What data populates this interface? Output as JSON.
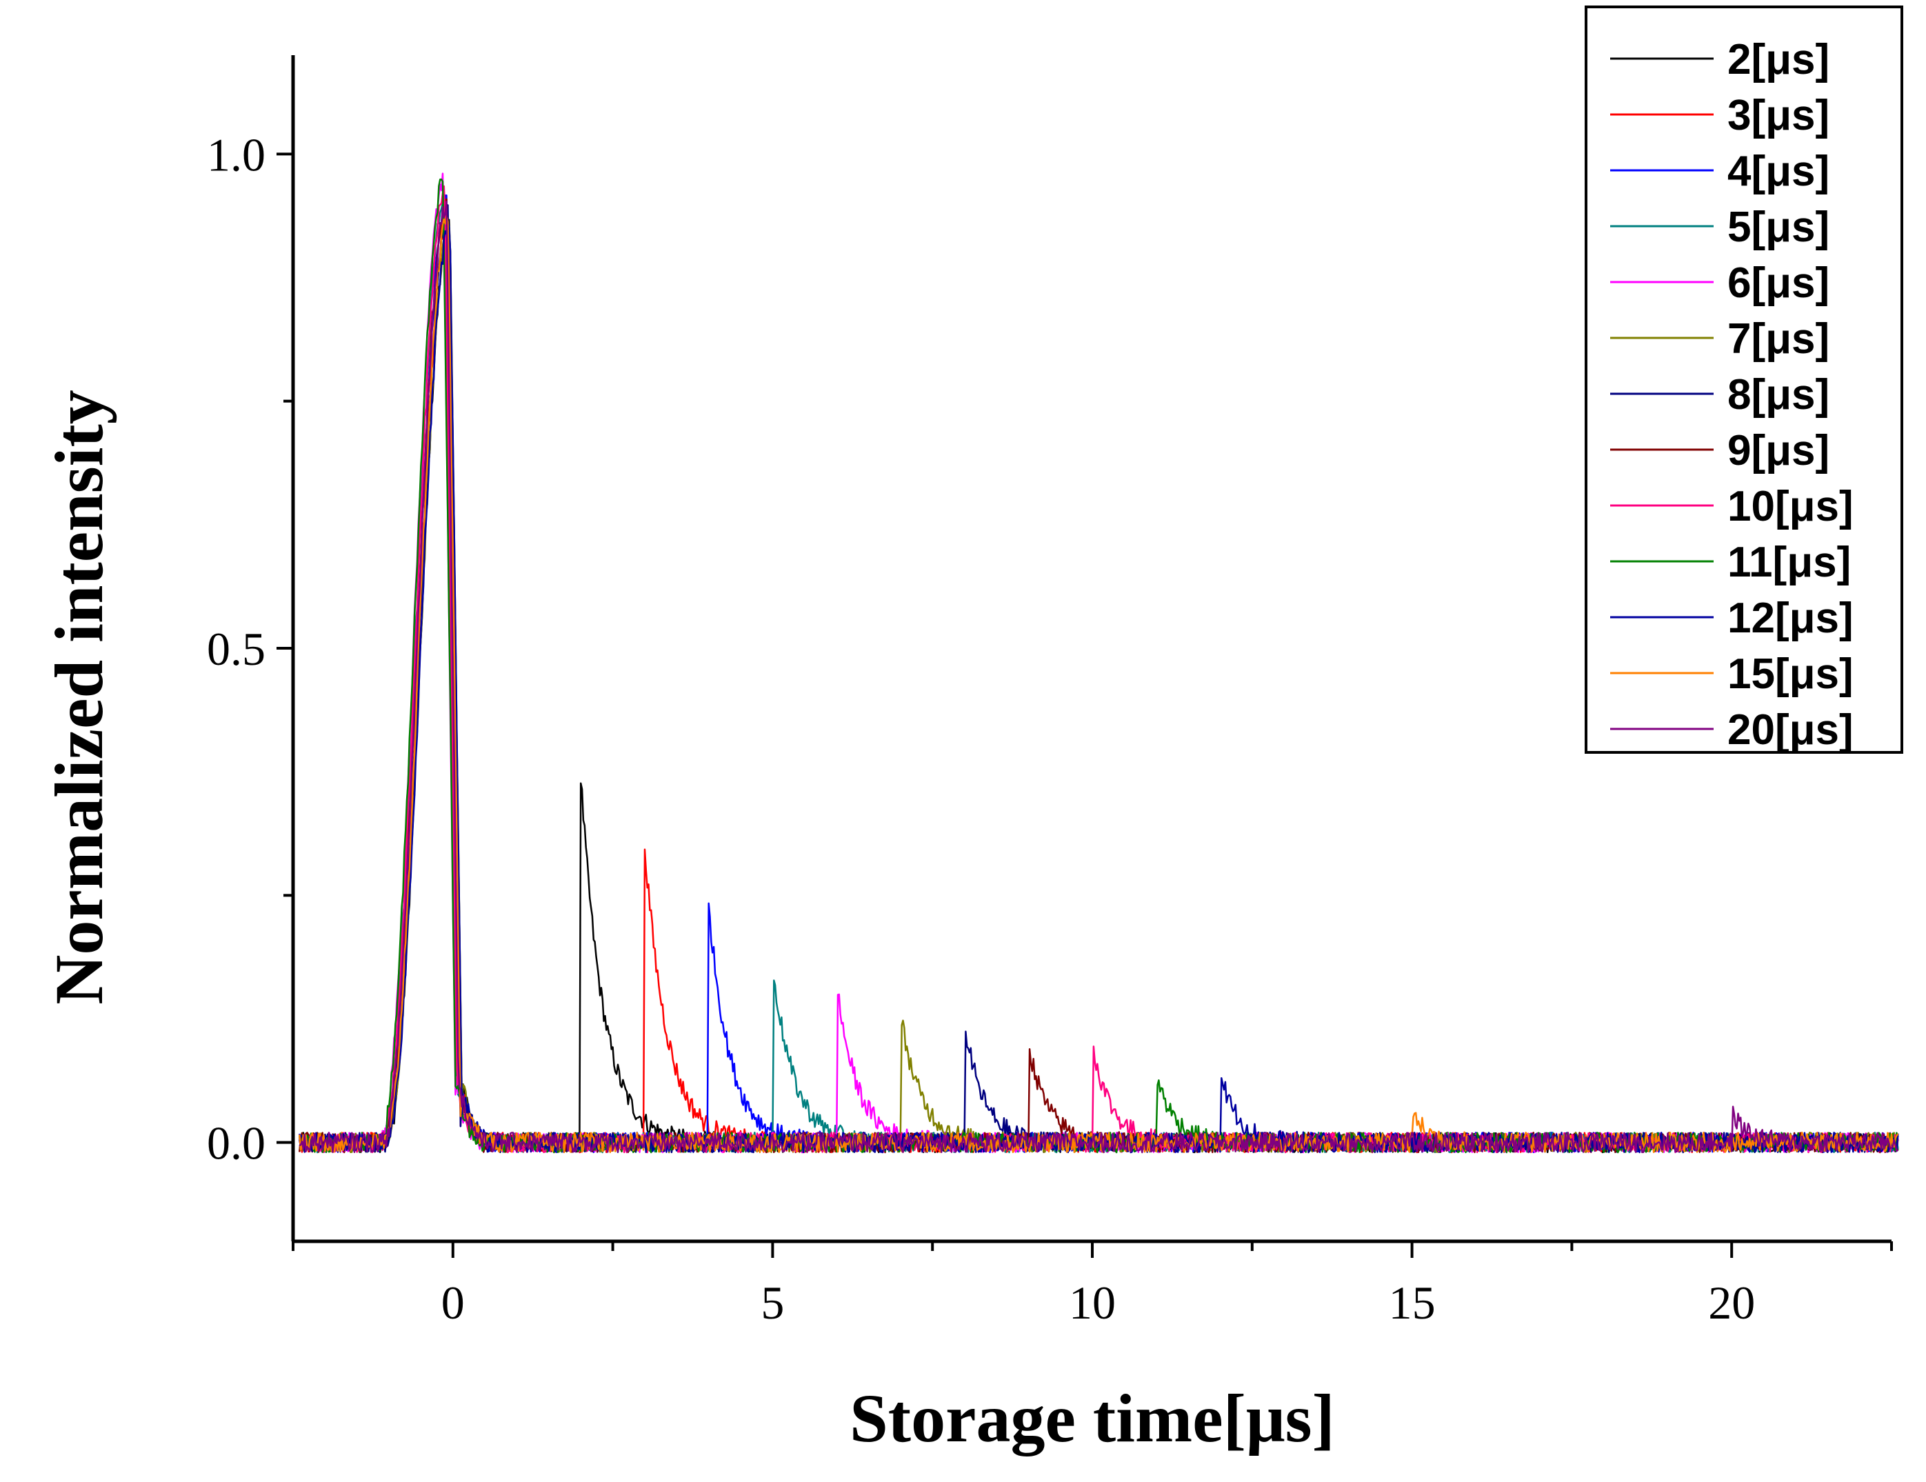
{
  "chart_data": {
    "type": "line",
    "title": "",
    "xlabel": "Storage time[μs]",
    "ylabel": "Normalized intensity",
    "xlim": [
      -2.5,
      22.5
    ],
    "ylim": [
      -0.1,
      1.1
    ],
    "xticks": [
      0,
      5,
      10,
      15,
      20
    ],
    "xtick_labels": [
      "0",
      "5",
      "10",
      "15",
      "20"
    ],
    "yticks": [
      0.0,
      0.5,
      1.0
    ],
    "ytick_labels": [
      "0.0",
      "0.5",
      "1.0"
    ],
    "grid": false,
    "legend_position": "top-right",
    "write_pulse": {
      "rise_start": -1.1,
      "peak_time": -0.1,
      "peak": 0.95,
      "fall_end": 0.1
    },
    "series": [
      {
        "name": "2[μs]",
        "color": "#000000",
        "storage_time": 2,
        "peak": 0.37,
        "decay_tau": 0.35
      },
      {
        "name": "3[μs]",
        "color": "#ff0000",
        "storage_time": 3,
        "peak": 0.3,
        "decay_tau": 0.35
      },
      {
        "name": "4[μs]",
        "color": "#0000ff",
        "storage_time": 4,
        "peak": 0.24,
        "decay_tau": 0.33
      },
      {
        "name": "5[μs]",
        "color": "#008080",
        "storage_time": 5,
        "peak": 0.18,
        "decay_tau": 0.33
      },
      {
        "name": "6[μs]",
        "color": "#ff00ff",
        "storage_time": 6,
        "peak": 0.16,
        "decay_tau": 0.32
      },
      {
        "name": "7[μs]",
        "color": "#808000",
        "storage_time": 7,
        "peak": 0.13,
        "decay_tau": 0.32
      },
      {
        "name": "8[μs]",
        "color": "#000080",
        "storage_time": 8,
        "peak": 0.12,
        "decay_tau": 0.3
      },
      {
        "name": "9[μs]",
        "color": "#800000",
        "storage_time": 9,
        "peak": 0.1,
        "decay_tau": 0.3
      },
      {
        "name": "10[μs]",
        "color": "#ff0080",
        "storage_time": 10,
        "peak": 0.1,
        "decay_tau": 0.3
      },
      {
        "name": "11[μs]",
        "color": "#008000",
        "storage_time": 11,
        "peak": 0.07,
        "decay_tau": 0.28
      },
      {
        "name": "12[μs]",
        "color": "#0000a0",
        "storage_time": 12,
        "peak": 0.07,
        "decay_tau": 0.28
      },
      {
        "name": "15[μs]",
        "color": "#ff8000",
        "storage_time": 15,
        "peak": 0.03,
        "decay_tau": 0.25
      },
      {
        "name": "20[μs]",
        "color": "#800080",
        "storage_time": 20,
        "peak": 0.03,
        "decay_tau": 0.25
      }
    ]
  }
}
